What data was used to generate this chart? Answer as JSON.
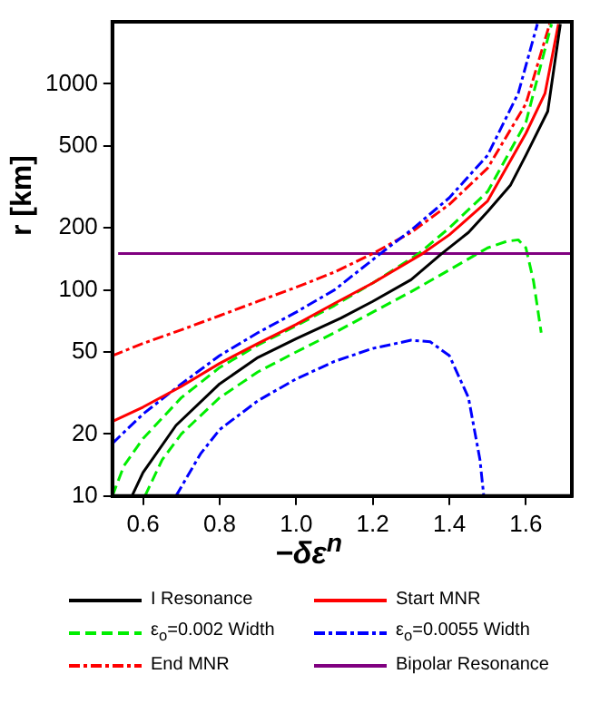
{
  "chart_data": {
    "type": "line",
    "xlabel": "−δε$^{n}$",
    "ylabel": "r [km]",
    "log": "y",
    "grid": false,
    "legend": "bottom",
    "marker": "none",
    "xlim": [
      0.52,
      1.72
    ],
    "xticks": [
      {
        "value": 0.6,
        "label": "0.6"
      },
      {
        "value": 0.8,
        "label": "0.8"
      },
      {
        "value": 1,
        "label": "1.0"
      },
      {
        "value": 1.2,
        "label": "1.2"
      },
      {
        "value": 1.4,
        "label": "1.4"
      },
      {
        "value": 1.6,
        "label": "1.6"
      }
    ],
    "ylim": [
      10,
      2000
    ],
    "yticks": [
      10,
      20,
      50,
      100,
      200,
      500,
      1000
    ],
    "series": [
      {
        "name": "I Resonance",
        "color": "#000000",
        "line_style": "solid",
        "x": [
          0.571,
          0.6,
          0.686,
          0.8,
          0.9,
          1.0,
          1.117,
          1.2,
          1.3,
          1.38,
          1.45,
          1.5,
          1.56,
          1.6,
          1.657,
          1.69
        ],
        "values": [
          10,
          13,
          22,
          35,
          47,
          58,
          73,
          88,
          112,
          150,
          190,
          240,
          323,
          450,
          735,
          1950
        ]
      },
      {
        "name": "Start MNR",
        "color": "#ff0000",
        "line_style": "solid",
        "x": [
          0.52,
          0.6,
          0.7,
          0.8,
          0.9,
          1.0,
          1.1,
          1.2,
          1.33,
          1.4,
          1.5,
          1.6,
          1.65,
          1.685
        ],
        "values": [
          23,
          27,
          34,
          44,
          55,
          68,
          86,
          108,
          150,
          185,
          270,
          575,
          900,
          1950
        ]
      },
      {
        "name": "ε$_{o}$=0.002 Width",
        "color": "#00ee00",
        "line_style": "dashed",
        "x": [
          0.52,
          0.55,
          0.6,
          0.7,
          0.8,
          0.9,
          1.0,
          1.1,
          1.2,
          1.32,
          1.4,
          1.5,
          1.6,
          1.667
        ],
        "values": [
          10,
          14,
          19,
          30,
          42,
          54,
          67,
          84,
          108,
          150,
          200,
          300,
          650,
          1950
        ]
      },
      {
        "name": "ε$_{o}$=0.0055 Width",
        "color": "#0000ff",
        "line_style": "dashdot",
        "x": [
          0.52,
          0.6,
          0.7,
          0.8,
          0.9,
          1.0,
          1.1,
          1.22,
          1.3,
          1.4,
          1.5,
          1.58,
          1.63
        ],
        "values": [
          18,
          25,
          35,
          48,
          62,
          78,
          100,
          150,
          195,
          280,
          450,
          900,
          1950
        ]
      },
      {
        "name": "End MNR",
        "color": "#ff0000",
        "line_style": "dashdot",
        "x": [
          0.52,
          0.6,
          0.7,
          0.8,
          0.9,
          1.0,
          1.1,
          1.2,
          1.3,
          1.4,
          1.5,
          1.6,
          1.662
        ],
        "values": [
          48,
          55,
          64,
          75,
          88,
          103,
          122,
          150,
          190,
          260,
          390,
          800,
          1950
        ]
      },
      {
        "name": "Bipolar Resonance",
        "color": "#800080",
        "line_style": "solid",
        "x": [
          0.535,
          1.72
        ],
        "values": [
          150,
          150
        ]
      },
      {
        "color": "#00ee00",
        "line_style": "dashed",
        "x": [
          0.605,
          0.65,
          0.7,
          0.8,
          0.9,
          1.0,
          1.1,
          1.2,
          1.3,
          1.4,
          1.5,
          1.55,
          1.58,
          1.6,
          1.62,
          1.64
        ],
        "values": [
          10,
          15,
          20,
          30,
          40,
          50,
          62,
          78,
          98,
          125,
          160,
          172,
          175,
          160,
          110,
          62
        ]
      },
      {
        "color": "#0000ff",
        "line_style": "dashdot",
        "x": [
          0.686,
          0.75,
          0.8,
          0.9,
          1.0,
          1.1,
          1.2,
          1.3,
          1.35,
          1.4,
          1.45,
          1.48,
          1.49
        ],
        "values": [
          10,
          16,
          21,
          29,
          37,
          45,
          52,
          57,
          56,
          48,
          30,
          15,
          10
        ]
      }
    ]
  }
}
